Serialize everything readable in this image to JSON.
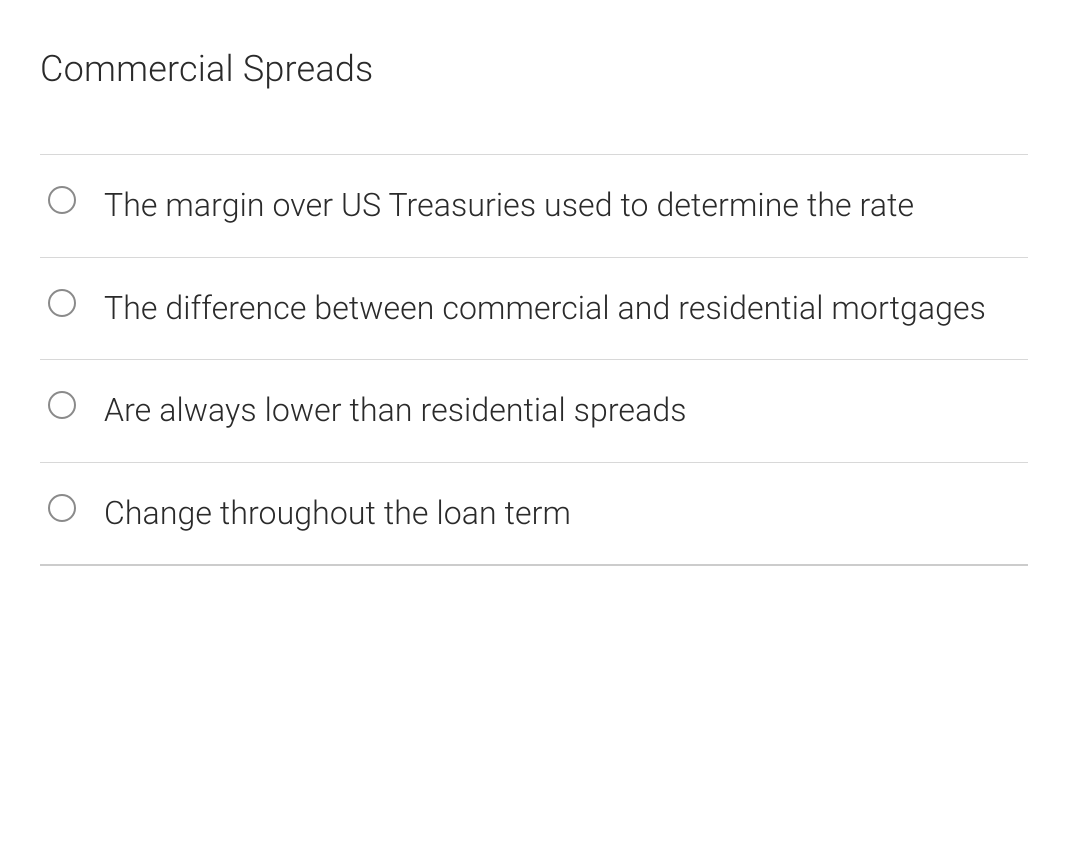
{
  "question": {
    "title": "Commercial Spreads",
    "options": [
      {
        "label": "The margin over US Treasuries used to determine the rate"
      },
      {
        "label": "The difference between commercial and residential mortgages"
      },
      {
        "label": "Are always lower than residential spreads"
      },
      {
        "label": "Change throughout the loan term"
      }
    ]
  },
  "style": {
    "title_fontsize": 36,
    "option_fontsize": 32,
    "text_color": "#2a2a2a",
    "divider_color": "#d8d8d8",
    "radio_border_color": "#8a8a8a",
    "background_color": "#ffffff"
  }
}
